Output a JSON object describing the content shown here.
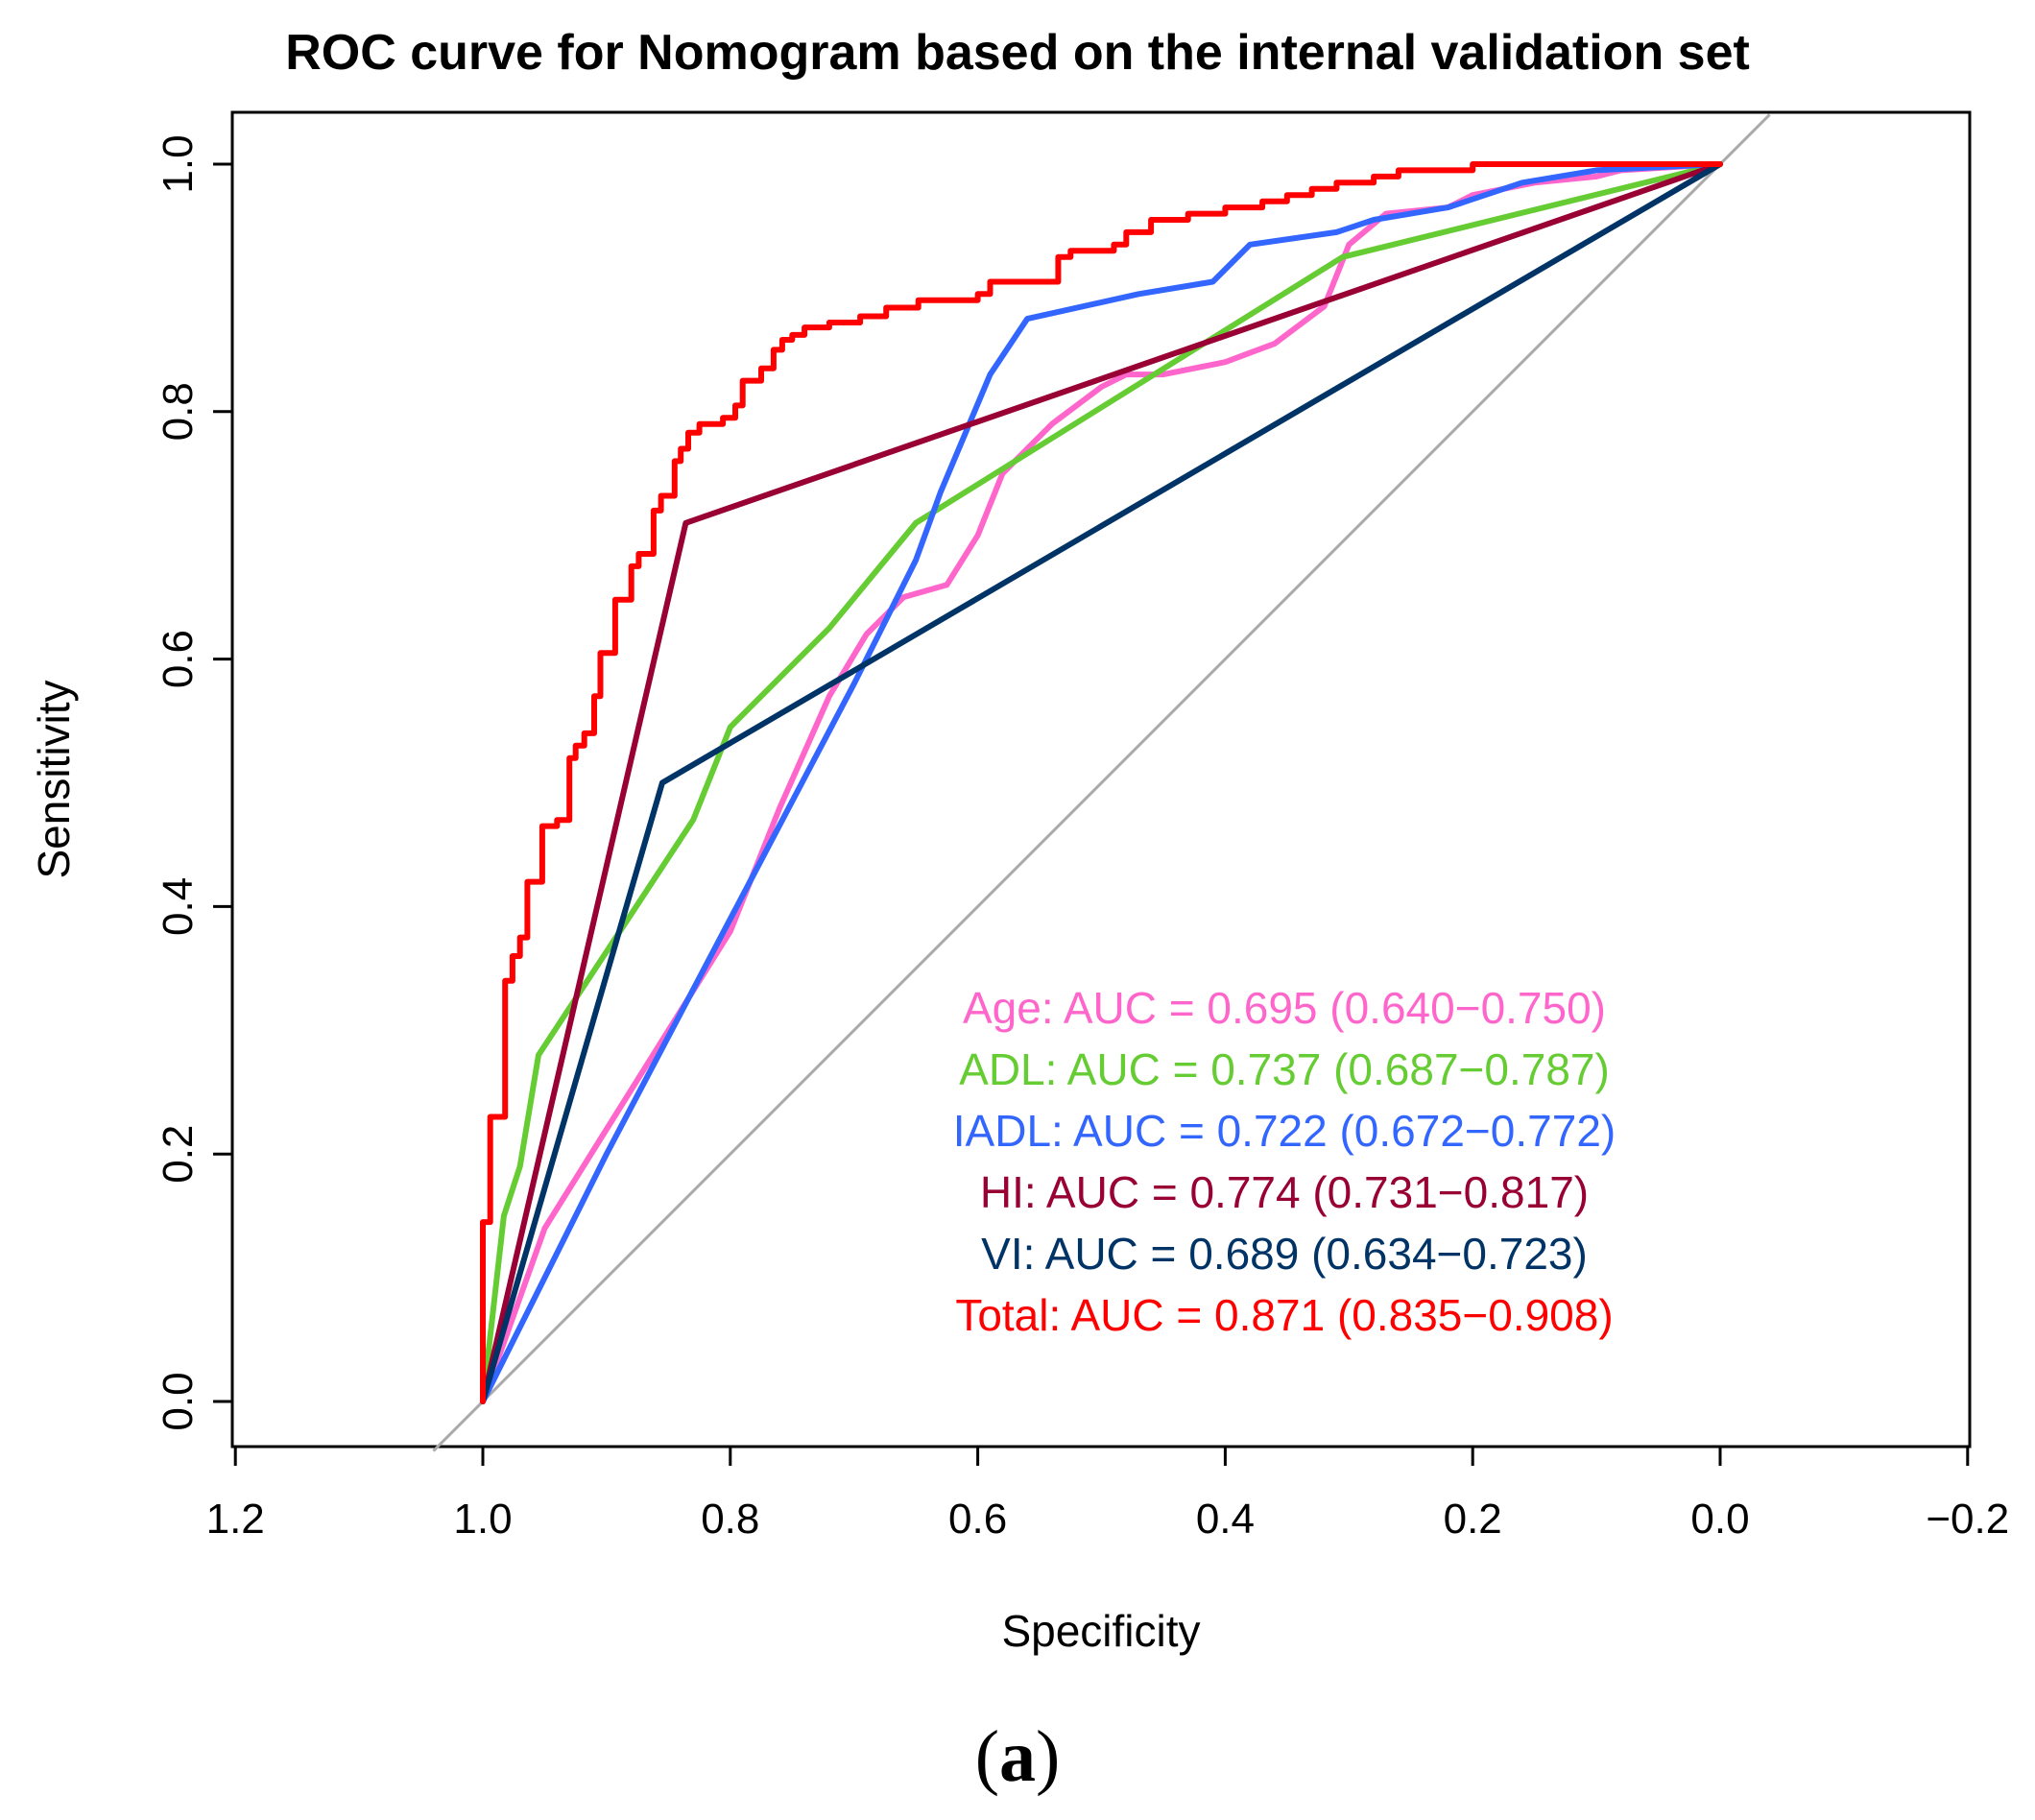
{
  "chart_data": {
    "type": "line",
    "title": "ROC curve for Nomogram based on the internal validation set",
    "xlabel": "Specificity",
    "ylabel": "Sensitivity",
    "xlim": [
      1.2,
      -0.2
    ],
    "ylim": [
      0.0,
      1.0
    ],
    "x_ticks": [
      "1.2",
      "1.0",
      "0.8",
      "0.6",
      "0.4",
      "0.2",
      "0.0",
      "−0.2"
    ],
    "x_tick_values": [
      1.2,
      1.0,
      0.8,
      0.6,
      0.4,
      0.2,
      0.0,
      -0.2
    ],
    "y_ticks": [
      "0.0",
      "0.2",
      "0.4",
      "0.6",
      "0.8",
      "1.0"
    ],
    "y_tick_values": [
      0.0,
      0.2,
      0.4,
      0.6,
      0.8,
      1.0
    ],
    "reference_line": {
      "color": "#aaaaaa",
      "points": [
        [
          1.04,
          -0.04
        ],
        [
          -0.04,
          1.04
        ]
      ]
    },
    "legend_position": "center-right",
    "series": [
      {
        "name": "Age",
        "legend": "Age: AUC = 0.695 (0.640−0.750)",
        "color": "#ff66cc",
        "points": [
          [
            1.0,
            0.0
          ],
          [
            0.95,
            0.14
          ],
          [
            0.9,
            0.22
          ],
          [
            0.85,
            0.3
          ],
          [
            0.8,
            0.38
          ],
          [
            0.76,
            0.48
          ],
          [
            0.72,
            0.57
          ],
          [
            0.69,
            0.62
          ],
          [
            0.66,
            0.65
          ],
          [
            0.625,
            0.66
          ],
          [
            0.6,
            0.7
          ],
          [
            0.58,
            0.75
          ],
          [
            0.54,
            0.79
          ],
          [
            0.5,
            0.82
          ],
          [
            0.48,
            0.83
          ],
          [
            0.45,
            0.83
          ],
          [
            0.4,
            0.84
          ],
          [
            0.36,
            0.855
          ],
          [
            0.32,
            0.885
          ],
          [
            0.3,
            0.935
          ],
          [
            0.27,
            0.96
          ],
          [
            0.22,
            0.965
          ],
          [
            0.2,
            0.975
          ],
          [
            0.15,
            0.985
          ],
          [
            0.1,
            0.99
          ],
          [
            0.08,
            0.995
          ],
          [
            0.0,
            1.0
          ]
        ]
      },
      {
        "name": "ADL",
        "legend": "ADL: AUC = 0.737 (0.687−0.787)",
        "color": "#66cc33",
        "points": [
          [
            1.0,
            0.0
          ],
          [
            0.983,
            0.15
          ],
          [
            0.97,
            0.19
          ],
          [
            0.955,
            0.28
          ],
          [
            0.83,
            0.47
          ],
          [
            0.8,
            0.545
          ],
          [
            0.72,
            0.625
          ],
          [
            0.65,
            0.71
          ],
          [
            0.305,
            0.925
          ],
          [
            0.0,
            1.0
          ]
        ]
      },
      {
        "name": "IADL",
        "legend": "IADL: AUC = 0.722 (0.672−0.772)",
        "color": "#3366ff",
        "points": [
          [
            1.0,
            0.0
          ],
          [
            0.9,
            0.2
          ],
          [
            0.8,
            0.39
          ],
          [
            0.7,
            0.58
          ],
          [
            0.65,
            0.68
          ],
          [
            0.63,
            0.735
          ],
          [
            0.59,
            0.83
          ],
          [
            0.56,
            0.875
          ],
          [
            0.47,
            0.895
          ],
          [
            0.41,
            0.905
          ],
          [
            0.38,
            0.935
          ],
          [
            0.31,
            0.945
          ],
          [
            0.28,
            0.955
          ],
          [
            0.22,
            0.965
          ],
          [
            0.16,
            0.985
          ],
          [
            0.1,
            0.995
          ],
          [
            0.0,
            1.0
          ]
        ]
      },
      {
        "name": "HI",
        "legend": "HI: AUC = 0.774 (0.731−0.817)",
        "color": "#990033",
        "points": [
          [
            1.0,
            0.0
          ],
          [
            0.836,
            0.71
          ],
          [
            0.0,
            1.0
          ]
        ]
      },
      {
        "name": "VI",
        "legend": "VI: AUC = 0.689 (0.634−0.723)",
        "color": "#003366",
        "points": [
          [
            1.0,
            0.0
          ],
          [
            0.855,
            0.5
          ],
          [
            0.0,
            1.0
          ]
        ]
      },
      {
        "name": "Total",
        "legend": "Total: AUC = 0.871 (0.835−0.908)",
        "color": "#ff0000",
        "points": [
          [
            1.0,
            0.0
          ],
          [
            1.0,
            0.145
          ],
          [
            0.994,
            0.145
          ],
          [
            0.994,
            0.23
          ],
          [
            0.982,
            0.23
          ],
          [
            0.982,
            0.34
          ],
          [
            0.976,
            0.34
          ],
          [
            0.976,
            0.36
          ],
          [
            0.97,
            0.36
          ],
          [
            0.97,
            0.375
          ],
          [
            0.964,
            0.375
          ],
          [
            0.964,
            0.42
          ],
          [
            0.952,
            0.42
          ],
          [
            0.952,
            0.465
          ],
          [
            0.94,
            0.465
          ],
          [
            0.94,
            0.47
          ],
          [
            0.93,
            0.47
          ],
          [
            0.93,
            0.52
          ],
          [
            0.925,
            0.52
          ],
          [
            0.925,
            0.53
          ],
          [
            0.918,
            0.53
          ],
          [
            0.918,
            0.54
          ],
          [
            0.91,
            0.54
          ],
          [
            0.91,
            0.57
          ],
          [
            0.905,
            0.57
          ],
          [
            0.905,
            0.605
          ],
          [
            0.893,
            0.605
          ],
          [
            0.893,
            0.648
          ],
          [
            0.88,
            0.648
          ],
          [
            0.88,
            0.675
          ],
          [
            0.874,
            0.675
          ],
          [
            0.874,
            0.685
          ],
          [
            0.862,
            0.685
          ],
          [
            0.862,
            0.72
          ],
          [
            0.856,
            0.72
          ],
          [
            0.856,
            0.732
          ],
          [
            0.845,
            0.732
          ],
          [
            0.845,
            0.76
          ],
          [
            0.84,
            0.76
          ],
          [
            0.84,
            0.77
          ],
          [
            0.834,
            0.77
          ],
          [
            0.834,
            0.783
          ],
          [
            0.825,
            0.783
          ],
          [
            0.825,
            0.79
          ],
          [
            0.806,
            0.79
          ],
          [
            0.806,
            0.795
          ],
          [
            0.796,
            0.795
          ],
          [
            0.796,
            0.805
          ],
          [
            0.79,
            0.805
          ],
          [
            0.79,
            0.825
          ],
          [
            0.775,
            0.825
          ],
          [
            0.775,
            0.835
          ],
          [
            0.765,
            0.835
          ],
          [
            0.765,
            0.85
          ],
          [
            0.758,
            0.85
          ],
          [
            0.758,
            0.858
          ],
          [
            0.75,
            0.858
          ],
          [
            0.75,
            0.862
          ],
          [
            0.74,
            0.862
          ],
          [
            0.74,
            0.868
          ],
          [
            0.72,
            0.868
          ],
          [
            0.72,
            0.872
          ],
          [
            0.695,
            0.872
          ],
          [
            0.695,
            0.877
          ],
          [
            0.674,
            0.877
          ],
          [
            0.674,
            0.884
          ],
          [
            0.648,
            0.884
          ],
          [
            0.648,
            0.89
          ],
          [
            0.6,
            0.89
          ],
          [
            0.6,
            0.895
          ],
          [
            0.59,
            0.895
          ],
          [
            0.59,
            0.905
          ],
          [
            0.535,
            0.905
          ],
          [
            0.535,
            0.925
          ],
          [
            0.525,
            0.925
          ],
          [
            0.525,
            0.93
          ],
          [
            0.49,
            0.93
          ],
          [
            0.49,
            0.935
          ],
          [
            0.48,
            0.935
          ],
          [
            0.48,
            0.945
          ],
          [
            0.46,
            0.945
          ],
          [
            0.46,
            0.955
          ],
          [
            0.43,
            0.955
          ],
          [
            0.43,
            0.96
          ],
          [
            0.4,
            0.96
          ],
          [
            0.4,
            0.965
          ],
          [
            0.37,
            0.965
          ],
          [
            0.37,
            0.97
          ],
          [
            0.35,
            0.97
          ],
          [
            0.35,
            0.975
          ],
          [
            0.33,
            0.975
          ],
          [
            0.33,
            0.98
          ],
          [
            0.31,
            0.98
          ],
          [
            0.31,
            0.985
          ],
          [
            0.28,
            0.985
          ],
          [
            0.28,
            0.99
          ],
          [
            0.26,
            0.99
          ],
          [
            0.26,
            0.995
          ],
          [
            0.2,
            0.995
          ],
          [
            0.2,
            1.0
          ],
          [
            0.0,
            1.0
          ]
        ]
      }
    ]
  },
  "caption": {
    "open": "(",
    "letter": "a",
    "close": ")"
  }
}
